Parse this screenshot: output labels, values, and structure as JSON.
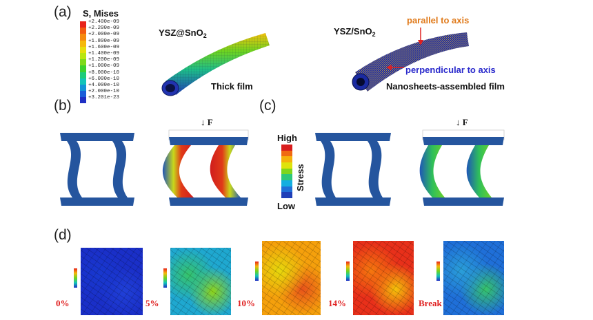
{
  "panels": {
    "a": "(a)",
    "b": "(b)",
    "c": "(c)",
    "d": "(d)"
  },
  "legend": {
    "title": "S, Mises",
    "values": [
      "+2.400e-09",
      "+2.200e-09",
      "+2.000e-09",
      "+1.800e-09",
      "+1.600e-09",
      "+1.400e-09",
      "+1.200e-09",
      "+1.000e-09",
      "+8.000e-10",
      "+6.000e-10",
      "+4.000e-10",
      "+2.000e-10",
      "+3.201e-23"
    ],
    "colors": [
      "#e8231a",
      "#f25a10",
      "#f58a0e",
      "#f5b80a",
      "#e6de0c",
      "#b9e60f",
      "#7ed91a",
      "#3cd12d",
      "#1dcc7a",
      "#12c4b8",
      "#1294d6",
      "#1a5ed9",
      "#1f2fc4"
    ]
  },
  "panel_a": {
    "left_material": "YSZ@SnO",
    "left_sub": "2",
    "left_caption": "Thick film",
    "right_material": "YSZ/SnO",
    "right_sub": "2",
    "parallel_label": "parallel to axis",
    "perpendicular_label": "perpendicular to axis",
    "right_caption": "Nanosheets-assembled film"
  },
  "force_label": "F",
  "stress_scale": {
    "high": "High",
    "low": "Low",
    "label": "Stress",
    "colors": [
      "#d81d1d",
      "#f06a12",
      "#f5b10c",
      "#dfe30c",
      "#7fd61c",
      "#2ec87a",
      "#14aee0",
      "#1f6fd8",
      "#1f3fb8"
    ]
  },
  "strain_levels": [
    "0%",
    "5%",
    "10%",
    "14%",
    "Break"
  ]
}
